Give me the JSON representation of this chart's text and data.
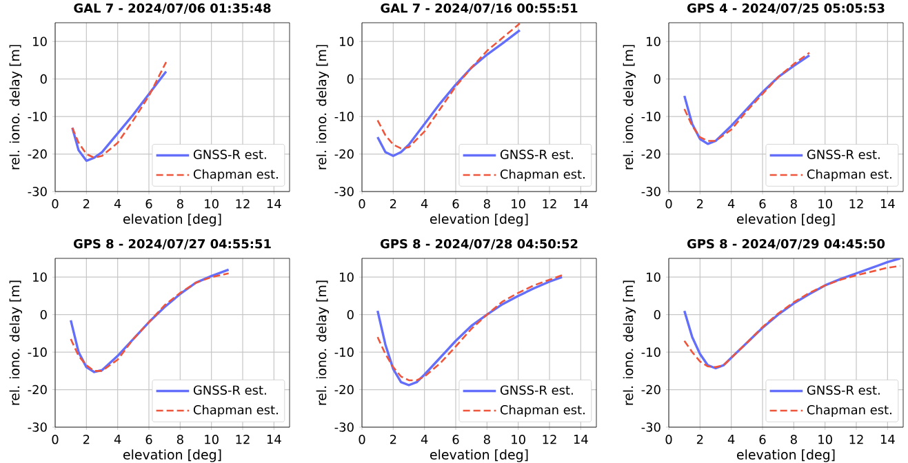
{
  "chart_data": [
    {
      "type": "line",
      "title": "GAL 7 - 2024/07/06 01:35:48",
      "xlabel": "elevation [deg]",
      "ylabel": "rel. iono. delay [m]",
      "xlim": [
        0,
        15
      ],
      "ylim": [
        -30,
        15
      ],
      "xticks": [
        0,
        2,
        4,
        6,
        8,
        10,
        12,
        14
      ],
      "yticks": [
        -30,
        -20,
        -10,
        0,
        10
      ],
      "grid": true,
      "legend": "bottom right",
      "series": [
        {
          "name": "GNSS-R est.",
          "color": "#636efa",
          "line_style": "solid",
          "x": [
            1.1,
            1.5,
            2,
            2.5,
            3,
            4,
            5,
            6,
            7.1
          ],
          "values": [
            -13,
            -19,
            -21.8,
            -21,
            -19.5,
            -14.5,
            -9.5,
            -4,
            2
          ]
        },
        {
          "name": "Chapman est.",
          "color": "#ef553b",
          "line_style": "dashed",
          "x": [
            1.1,
            1.5,
            2,
            2.5,
            3,
            4,
            5,
            6,
            7.1
          ],
          "values": [
            -13,
            -17,
            -20,
            -21,
            -20.5,
            -17,
            -11,
            -4.5,
            4.5
          ]
        }
      ]
    },
    {
      "type": "line",
      "title": "GAL 7 - 2024/07/16 00:55:51",
      "xlabel": "elevation [deg]",
      "ylabel": "rel. iono. delay [m]",
      "xlim": [
        0,
        15
      ],
      "ylim": [
        -30,
        15
      ],
      "xticks": [
        0,
        2,
        4,
        6,
        8,
        10,
        12,
        14
      ],
      "yticks": [
        -30,
        -20,
        -10,
        0,
        10
      ],
      "grid": true,
      "legend": "bottom right",
      "series": [
        {
          "name": "GNSS-R est.",
          "color": "#636efa",
          "line_style": "solid",
          "x": [
            1,
            1.5,
            2,
            2.5,
            3,
            4,
            5,
            6,
            7,
            8,
            9,
            10.1
          ],
          "values": [
            -15.5,
            -19.5,
            -20.5,
            -19.5,
            -17.5,
            -12,
            -6.5,
            -1.5,
            3,
            6.5,
            9.5,
            13
          ]
        },
        {
          "name": "Chapman est.",
          "color": "#ef553b",
          "line_style": "dashed",
          "x": [
            1,
            1.5,
            2,
            2.5,
            3,
            4,
            5,
            6,
            7,
            8,
            9,
            10.1
          ],
          "values": [
            -11,
            -15,
            -17.5,
            -18.5,
            -18.2,
            -14,
            -8,
            -2,
            3,
            7.5,
            11,
            14.8
          ]
        }
      ]
    },
    {
      "type": "line",
      "title": "GPS 4 - 2024/07/25 05:05:53",
      "xlabel": "elevation [deg]",
      "ylabel": "rel. iono. delay [m]",
      "xlim": [
        0,
        15
      ],
      "ylim": [
        -30,
        15
      ],
      "xticks": [
        0,
        2,
        4,
        6,
        8,
        10,
        12,
        14
      ],
      "yticks": [
        -30,
        -20,
        -10,
        0,
        10
      ],
      "grid": true,
      "legend": "bottom right",
      "series": [
        {
          "name": "GNSS-R est.",
          "color": "#636efa",
          "line_style": "solid",
          "x": [
            1,
            1.5,
            2,
            2.5,
            3,
            4,
            5,
            6,
            7,
            8,
            9
          ],
          "values": [
            -4.5,
            -12,
            -16,
            -17.3,
            -16.5,
            -12.5,
            -8,
            -3.5,
            0.5,
            3.5,
            6.3
          ]
        },
        {
          "name": "Chapman est.",
          "color": "#ef553b",
          "line_style": "dashed",
          "x": [
            1,
            1.5,
            2,
            2.5,
            3,
            4,
            5,
            6,
            7,
            8,
            9
          ],
          "values": [
            -8,
            -12.5,
            -15.5,
            -16.5,
            -16.5,
            -13.5,
            -8.5,
            -4,
            0.5,
            4,
            7
          ]
        }
      ]
    },
    {
      "type": "line",
      "title": "GPS 8 - 2024/07/27 04:55:51",
      "xlabel": "elevation [deg]",
      "ylabel": "rel. iono. delay [m]",
      "xlim": [
        0,
        15
      ],
      "ylim": [
        -30,
        15
      ],
      "xticks": [
        0,
        2,
        4,
        6,
        8,
        10,
        12,
        14
      ],
      "yticks": [
        -30,
        -20,
        -10,
        0,
        10
      ],
      "grid": true,
      "legend": "bottom right",
      "series": [
        {
          "name": "GNSS-R est.",
          "color": "#636efa",
          "line_style": "solid",
          "x": [
            1,
            1.5,
            2,
            2.5,
            3,
            4,
            5,
            6,
            7,
            8,
            9,
            10,
            11.1
          ],
          "values": [
            -1.5,
            -10,
            -14,
            -15.3,
            -14.8,
            -11,
            -6.5,
            -2,
            2,
            5.5,
            8.5,
            10.3,
            12
          ]
        },
        {
          "name": "Chapman est.",
          "color": "#ef553b",
          "line_style": "dashed",
          "x": [
            1,
            1.5,
            2,
            2.5,
            3,
            4,
            5,
            6,
            7,
            8,
            9,
            10,
            11.1
          ],
          "values": [
            -6.5,
            -11,
            -13.5,
            -15,
            -15,
            -12,
            -6.5,
            -2,
            2.5,
            5.8,
            8.5,
            10,
            11
          ]
        }
      ]
    },
    {
      "type": "line",
      "title": "GPS 8 - 2024/07/28 04:50:52",
      "xlabel": "elevation [deg]",
      "ylabel": "rel. iono. delay [m]",
      "xlim": [
        0,
        15
      ],
      "ylim": [
        -30,
        15
      ],
      "xticks": [
        0,
        2,
        4,
        6,
        8,
        10,
        12,
        14
      ],
      "yticks": [
        -30,
        -20,
        -10,
        0,
        10
      ],
      "grid": true,
      "legend": "bottom right",
      "series": [
        {
          "name": "GNSS-R est.",
          "color": "#636efa",
          "line_style": "solid",
          "x": [
            1,
            1.5,
            2,
            2.5,
            3,
            3.5,
            4,
            5,
            6,
            7,
            8,
            9,
            10,
            11,
            12,
            12.8
          ],
          "values": [
            1,
            -8,
            -14.5,
            -18,
            -18.8,
            -18,
            -16,
            -11.5,
            -7,
            -3,
            0,
            2.8,
            5,
            7,
            8.8,
            10
          ]
        },
        {
          "name": "Chapman est.",
          "color": "#ef553b",
          "line_style": "dashed",
          "x": [
            1,
            1.5,
            2,
            2.5,
            3,
            3.5,
            4,
            5,
            6,
            7,
            8,
            9,
            10,
            11,
            12,
            12.8
          ],
          "values": [
            -6,
            -10.5,
            -14,
            -16.5,
            -17.5,
            -17.5,
            -16.5,
            -13,
            -8.5,
            -3.8,
            0,
            3.5,
            5.8,
            7.8,
            9.3,
            10.5
          ]
        }
      ]
    },
    {
      "type": "line",
      "title": "GPS 8 - 2024/07/29 04:45:50",
      "xlabel": "elevation [deg]",
      "ylabel": "rel. iono. delay [m]",
      "xlim": [
        0,
        15
      ],
      "ylim": [
        -30,
        15
      ],
      "xticks": [
        0,
        2,
        4,
        6,
        8,
        10,
        12,
        14
      ],
      "yticks": [
        -30,
        -20,
        -10,
        0,
        10
      ],
      "grid": true,
      "legend": "bottom right",
      "series": [
        {
          "name": "GNSS-R est.",
          "color": "#636efa",
          "line_style": "solid",
          "x": [
            1,
            1.5,
            2,
            2.5,
            3,
            3.5,
            4,
            5,
            6,
            7,
            8,
            9,
            10,
            11,
            12,
            13,
            14,
            14.8
          ],
          "values": [
            1,
            -6,
            -10.5,
            -13.5,
            -14.3,
            -13.5,
            -11.5,
            -7.5,
            -3.5,
            0,
            3,
            5.5,
            7.8,
            9.5,
            11,
            12.5,
            14,
            15
          ]
        },
        {
          "name": "Chapman est.",
          "color": "#ef553b",
          "line_style": "dashed",
          "x": [
            1,
            1.5,
            2,
            2.5,
            3,
            3.5,
            4,
            5,
            6,
            7,
            8,
            9,
            10,
            11,
            12,
            13,
            14,
            14.8
          ],
          "values": [
            -7,
            -10,
            -12.5,
            -13.8,
            -14,
            -13.5,
            -11.5,
            -7.5,
            -3.3,
            0.3,
            3.3,
            5.8,
            7.8,
            9.3,
            10.5,
            11.5,
            12.5,
            13
          ]
        }
      ]
    }
  ]
}
